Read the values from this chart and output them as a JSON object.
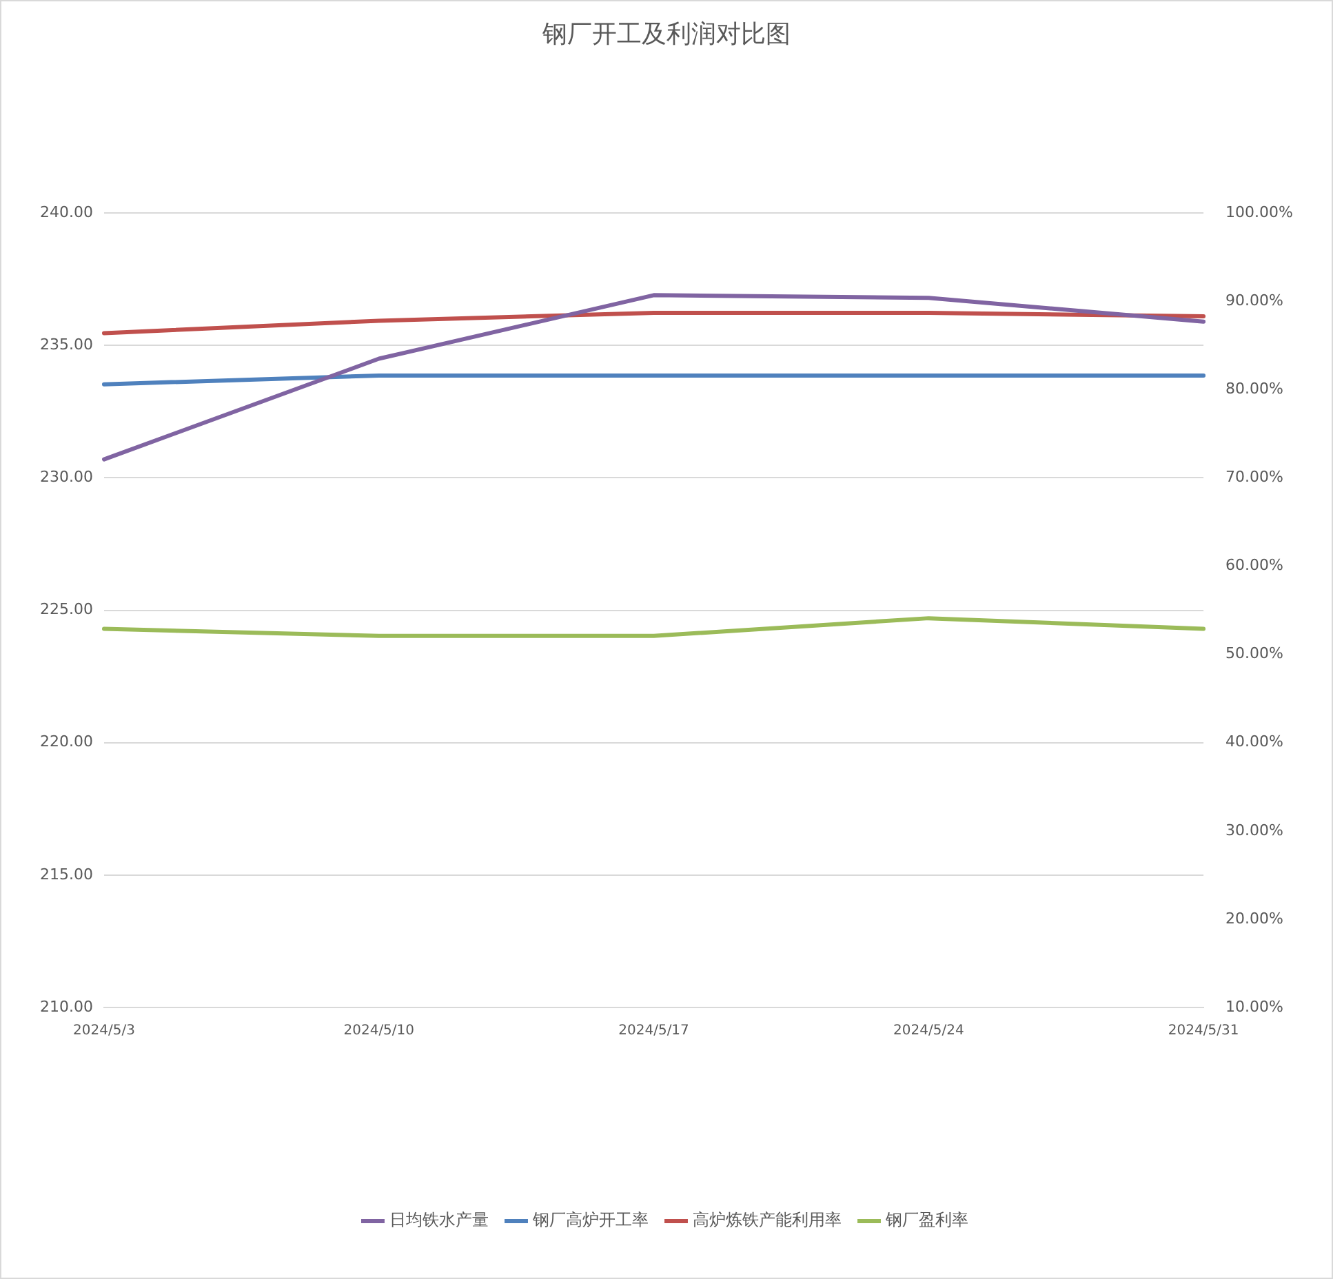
{
  "chart_data": {
    "type": "line",
    "title": "钢厂开工及利润对比图",
    "categories": [
      "2024/5/3",
      "2024/5/10",
      "2024/5/17",
      "2024/5/24",
      "2024/5/31"
    ],
    "series": [
      {
        "name": "日均铁水产量",
        "color": "#8064a2",
        "values": [
          230.7,
          234.5,
          236.9,
          236.8,
          235.9
        ]
      },
      {
        "name": "钢厂高炉开工率",
        "color": "#4f81bd",
        "axis": "y2",
        "values": [
          80.6,
          81.6,
          81.6,
          81.6,
          81.6
        ]
      },
      {
        "name": "高炉炼铁产能利用率",
        "color": "#c0504d",
        "axis": "y2",
        "values": [
          86.4,
          87.8,
          88.7,
          88.7,
          88.3
        ]
      },
      {
        "name": "钢厂盈利率",
        "color": "#9bbb59",
        "axis": "y2",
        "values": [
          52.9,
          52.1,
          52.1,
          54.1,
          52.9
        ]
      }
    ],
    "ylim": [
      210,
      240
    ],
    "yticks": [
      {
        "value": 210,
        "label": "210.00"
      },
      {
        "value": 215,
        "label": "215.00"
      },
      {
        "value": 220,
        "label": "220.00"
      },
      {
        "value": 225,
        "label": "225.00"
      },
      {
        "value": 230,
        "label": "230.00"
      },
      {
        "value": 235,
        "label": "235.00"
      },
      {
        "value": 240,
        "label": "240.00"
      }
    ],
    "y2lim": [
      10,
      100
    ],
    "y2ticks": [
      {
        "value": 10,
        "label": "10.00%"
      },
      {
        "value": 20,
        "label": "20.00%"
      },
      {
        "value": 30,
        "label": "30.00%"
      },
      {
        "value": 40,
        "label": "40.00%"
      },
      {
        "value": 50,
        "label": "50.00%"
      },
      {
        "value": 60,
        "label": "60.00%"
      },
      {
        "value": 70,
        "label": "70.00%"
      },
      {
        "value": 80,
        "label": "80.00%"
      },
      {
        "value": 90,
        "label": "90.00%"
      },
      {
        "value": 100,
        "label": "100.00%"
      }
    ],
    "grid": "y",
    "legend": "bottom",
    "marker": "none",
    "line_style": "solid"
  }
}
